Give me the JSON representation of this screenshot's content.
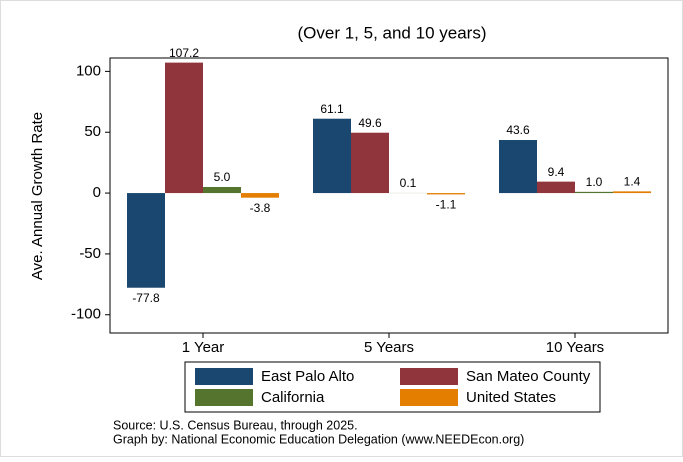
{
  "chart_data": {
    "type": "bar",
    "title": "(Over 1, 5, and 10 years)",
    "y_label": "Ave. Annual Growth Rate",
    "categories": [
      "1 Year",
      "5 Years",
      "10 Years"
    ],
    "series": [
      {
        "name": "East Palo Alto",
        "color": "#1a476f",
        "values": [
          -77.8,
          61.1,
          43.6
        ],
        "value_labels": [
          "-77.8",
          "61.1",
          "43.6"
        ]
      },
      {
        "name": "San Mateo County",
        "color": "#90353b",
        "values": [
          107.2,
          49.6,
          9.4
        ],
        "value_labels": [
          "107.2",
          "49.6",
          "9.4"
        ]
      },
      {
        "name": "California",
        "color": "#55752f",
        "values": [
          5.0,
          0.1,
          1.0
        ],
        "value_labels": [
          "5.0",
          "0.1",
          "1.0"
        ]
      },
      {
        "name": "United States",
        "color": "#e37e00",
        "values": [
          -3.8,
          -1.1,
          1.4
        ],
        "value_labels": [
          "-3.8",
          "-1.1",
          "1.4"
        ]
      }
    ],
    "ylim": [
      -115,
      111
    ],
    "yticks": [
      -100,
      -50,
      0,
      50,
      100
    ],
    "notes": [
      "Source: U.S. Census Bureau, through 2025.",
      "Graph by: National Economic Education Delegation (www.NEEDEcon.org)"
    ]
  }
}
